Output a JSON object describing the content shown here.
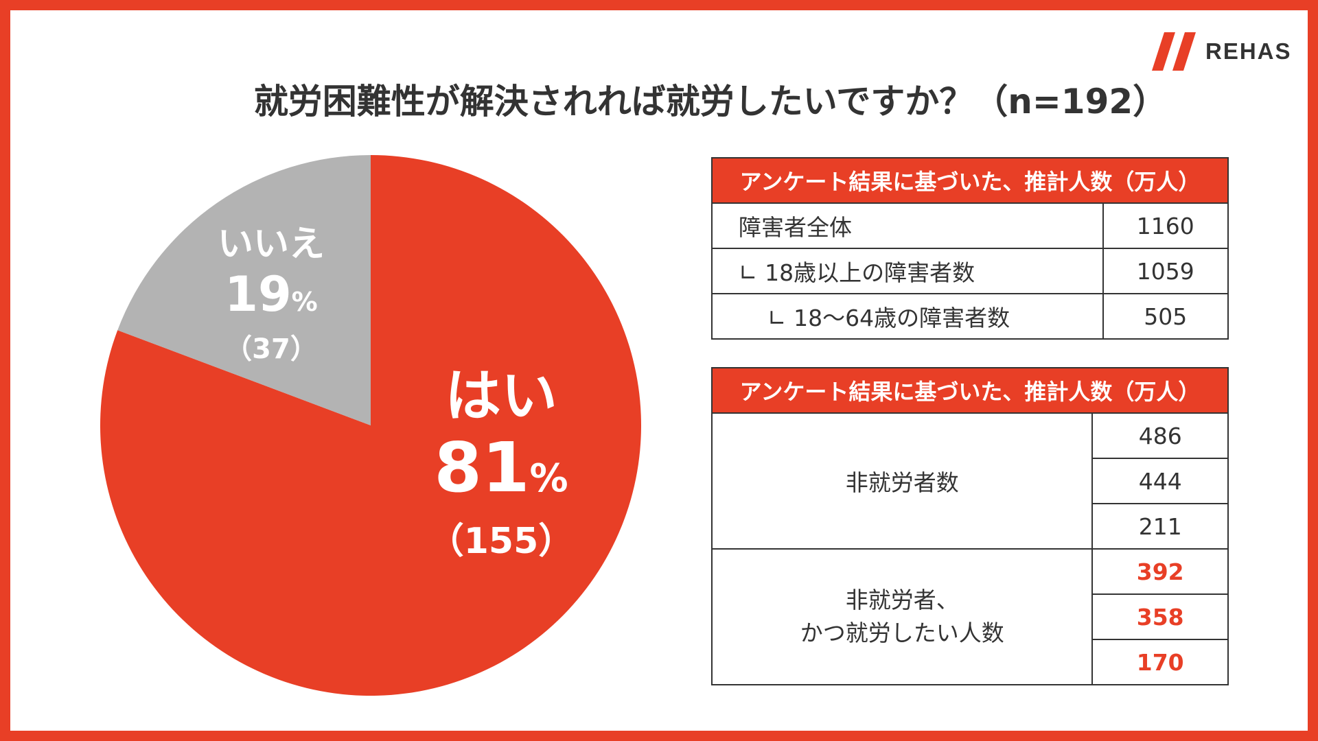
{
  "brand": {
    "name": "REHAS",
    "color": "#e83f26"
  },
  "title": "就労困難性が解決されれば就労したいですか？（n=192）",
  "chart_data": {
    "type": "pie",
    "title": "就労困難性が解決されれば就労したいですか？（n=192）",
    "slices": [
      {
        "label": "はい",
        "percent": 81,
        "count": 155,
        "count_text": "（155）",
        "color": "#e83f26"
      },
      {
        "label": "いいえ",
        "percent": 19,
        "count": 37,
        "count_text": "（37）",
        "color": "#b3b3b3"
      }
    ],
    "percent_unit": "%"
  },
  "table1": {
    "header": "アンケート結果に基づいた、推計人数（万人）",
    "rows": [
      {
        "label": "障害者全体",
        "value": "1160"
      },
      {
        "label": "∟ 18歳以上の障害者数",
        "value": "1059"
      },
      {
        "label": "∟ 18〜64歳の障害者数",
        "value": "505"
      }
    ]
  },
  "table2": {
    "header": "アンケート結果に基づいた、推計人数（万人）",
    "groups": [
      {
        "label_line1": "非就労者数",
        "label_line2": "",
        "values": [
          "486",
          "444",
          "211"
        ],
        "highlight": false
      },
      {
        "label_line1": "非就労者、",
        "label_line2": "かつ就労したい人数",
        "values": [
          "392",
          "358",
          "170"
        ],
        "highlight": true
      }
    ]
  }
}
